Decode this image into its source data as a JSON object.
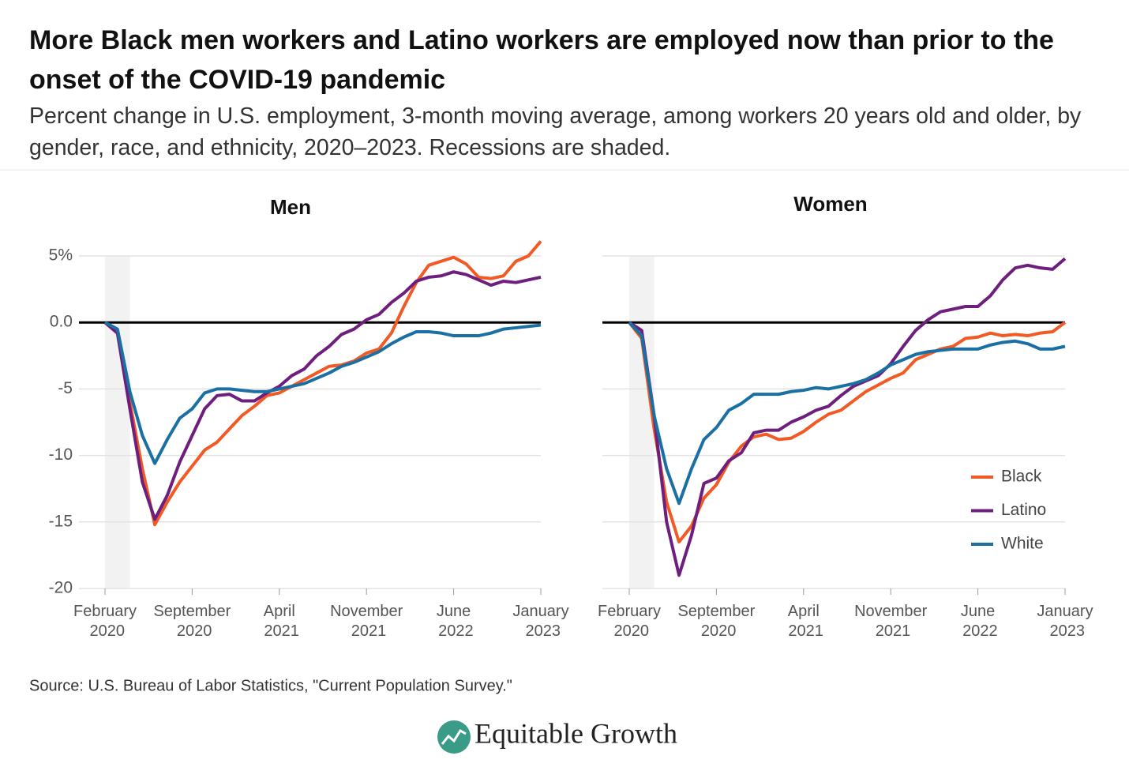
{
  "title": "More Black men workers and Latino workers are employed now than prior to the onset of the COVID-19 pandemic",
  "subtitle": "Percent change in U.S. employment, 3-month moving average, among workers 20 years old and older, by gender, race, and ethnicity, 2020–2023. Recessions are shaded.",
  "source": "Source: U.S. Bureau of Labor Statistics, \"Current Population Survey.\"",
  "brand": "Equitable Growth",
  "chart_data": [
    {
      "type": "line",
      "title": "Men",
      "categories": [
        "February 2020",
        null,
        null,
        null,
        null,
        null,
        null,
        "September 2020",
        null,
        null,
        null,
        null,
        null,
        null,
        "April 2021",
        null,
        null,
        null,
        null,
        null,
        null,
        "November 2021",
        null,
        null,
        null,
        null,
        null,
        null,
        "June 2022",
        null,
        null,
        null,
        null,
        null,
        null,
        "January 2023"
      ],
      "ylim": [
        -20,
        5
      ],
      "yticks": [
        {
          "value": 5,
          "label": "5%"
        },
        {
          "value": 0,
          "label": "0.0"
        },
        -5,
        -10,
        -15,
        -20
      ],
      "ytick_labels": true,
      "grid": true,
      "baseline": 0,
      "recession": [
        0,
        2
      ],
      "legend": false,
      "series": [
        {
          "name": "Black",
          "color": "#f15a24",
          "values": [
            0,
            -0.8,
            -6,
            -11,
            -15.2,
            -13.5,
            -12,
            -10.8,
            -9.6,
            -9,
            -8,
            -7,
            -6.3,
            -5.5,
            -5.3,
            -4.8,
            -4.3,
            -3.8,
            -3.3,
            -3.2,
            -2.9,
            -2.3,
            -2,
            -0.8,
            1.2,
            3,
            4.3,
            4.6,
            4.9,
            4.4,
            3.4,
            3.3,
            3.5,
            4.6,
            5,
            6.1
          ]
        },
        {
          "name": "Latino",
          "color": "#6e1f7d",
          "values": [
            0,
            -0.8,
            -6.5,
            -12,
            -14.8,
            -13,
            -10.5,
            -8.5,
            -6.5,
            -5.5,
            -5.4,
            -5.9,
            -5.9,
            -5.3,
            -4.8,
            -4,
            -3.5,
            -2.5,
            -1.8,
            -0.9,
            -0.5,
            0.2,
            0.6,
            1.5,
            2.2,
            3.1,
            3.4,
            3.5,
            3.8,
            3.6,
            3.2,
            2.8,
            3.1,
            3,
            3.2,
            3.4
          ]
        },
        {
          "name": "White",
          "color": "#1b70a3",
          "values": [
            0,
            -0.5,
            -5.2,
            -8.5,
            -10.6,
            -8.8,
            -7.2,
            -6.5,
            -5.3,
            -5,
            -5,
            -5.1,
            -5.2,
            -5.2,
            -5,
            -4.8,
            -4.6,
            -4.2,
            -3.8,
            -3.3,
            -3,
            -2.6,
            -2.2,
            -1.6,
            -1.1,
            -0.7,
            -0.7,
            -0.8,
            -1,
            -1,
            -1,
            -0.8,
            -0.5,
            -0.4,
            -0.3,
            -0.2
          ]
        }
      ]
    },
    {
      "type": "line",
      "title": "Women",
      "categories": [
        "February 2020",
        null,
        null,
        null,
        null,
        null,
        null,
        "September 2020",
        null,
        null,
        null,
        null,
        null,
        null,
        "April 2021",
        null,
        null,
        null,
        null,
        null,
        null,
        "November 2021",
        null,
        null,
        null,
        null,
        null,
        null,
        "June 2022",
        null,
        null,
        null,
        null,
        null,
        null,
        "January 2023"
      ],
      "ylim": [
        -20,
        5
      ],
      "yticks": [
        5,
        0,
        -5,
        -10,
        -15,
        -20
      ],
      "ytick_labels": false,
      "grid": true,
      "baseline": 0,
      "recession": [
        0,
        2
      ],
      "legend": true,
      "series": [
        {
          "name": "Black",
          "color": "#f15a24",
          "values": [
            0,
            -1.2,
            -8,
            -13.5,
            -16.5,
            -15.3,
            -13.2,
            -12.2,
            -10.5,
            -9.3,
            -8.6,
            -8.4,
            -8.8,
            -8.7,
            -8.2,
            -7.5,
            -6.9,
            -6.6,
            -5.9,
            -5.2,
            -4.7,
            -4.2,
            -3.8,
            -2.8,
            -2.4,
            -2,
            -1.8,
            -1.2,
            -1.1,
            -0.8,
            -1,
            -0.9,
            -1,
            -0.8,
            -0.7,
            0
          ]
        },
        {
          "name": "Latino",
          "color": "#6e1f7d",
          "values": [
            0,
            -0.6,
            -7,
            -15,
            -19,
            -16,
            -12.1,
            -11.7,
            -10.4,
            -9.8,
            -8.3,
            -8.1,
            -8.1,
            -7.5,
            -7.1,
            -6.6,
            -6.3,
            -5.5,
            -4.8,
            -4.4,
            -4,
            -3.1,
            -1.8,
            -0.6,
            0.2,
            0.8,
            1,
            1.2,
            1.2,
            2,
            3.2,
            4.1,
            4.3,
            4.1,
            4,
            4.8
          ]
        },
        {
          "name": "White",
          "color": "#1b70a3",
          "values": [
            0,
            -1,
            -7,
            -11,
            -13.6,
            -11,
            -8.8,
            -7.9,
            -6.6,
            -6.1,
            -5.4,
            -5.4,
            -5.4,
            -5.2,
            -5.1,
            -4.9,
            -5,
            -4.8,
            -4.6,
            -4.3,
            -3.8,
            -3.2,
            -2.8,
            -2.4,
            -2.2,
            -2.1,
            -2,
            -2,
            -2,
            -1.7,
            -1.5,
            -1.4,
            -1.6,
            -2,
            -2,
            -1.8
          ]
        }
      ]
    }
  ]
}
